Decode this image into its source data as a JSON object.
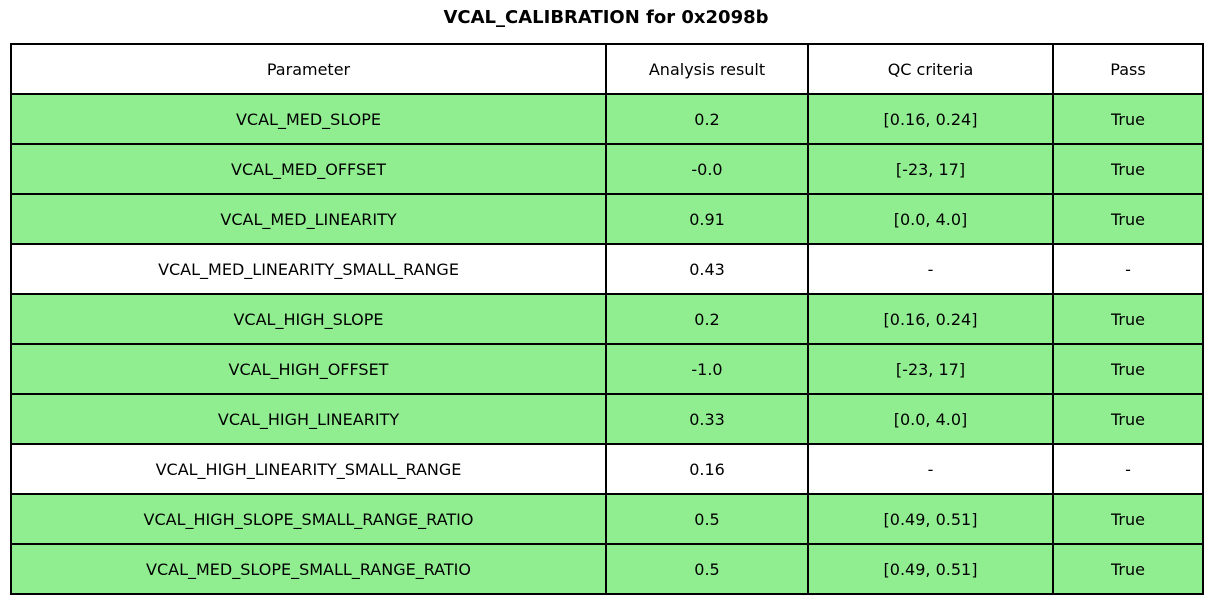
{
  "chart_data": {
    "type": "table",
    "title": "VCAL_CALIBRATION for 0x2098b",
    "columns": [
      "Parameter",
      "Analysis result",
      "QC criteria",
      "Pass"
    ],
    "rows": [
      [
        "VCAL_MED_SLOPE",
        "0.2",
        "[0.16, 0.24]",
        "True"
      ],
      [
        "VCAL_MED_OFFSET",
        "-0.0",
        "[-23, 17]",
        "True"
      ],
      [
        "VCAL_MED_LINEARITY",
        "0.91",
        "[0.0, 4.0]",
        "True"
      ],
      [
        "VCAL_MED_LINEARITY_SMALL_RANGE",
        "0.43",
        "-",
        "-"
      ],
      [
        "VCAL_HIGH_SLOPE",
        "0.2",
        "[0.16, 0.24]",
        "True"
      ],
      [
        "VCAL_HIGH_OFFSET",
        "-1.0",
        "[-23, 17]",
        "True"
      ],
      [
        "VCAL_HIGH_LINEARITY",
        "0.33",
        "[0.0, 4.0]",
        "True"
      ],
      [
        "VCAL_HIGH_LINEARITY_SMALL_RANGE",
        "0.16",
        "-",
        "-"
      ],
      [
        "VCAL_HIGH_SLOPE_SMALL_RANGE_RATIO",
        "0.5",
        "[0.49, 0.51]",
        "True"
      ],
      [
        "VCAL_MED_SLOPE_SMALL_RANGE_RATIO",
        "0.5",
        "[0.49, 0.51]",
        "True"
      ]
    ],
    "highlighted_rows": [
      0,
      1,
      2,
      4,
      5,
      6,
      8,
      9
    ],
    "legend_position": "none",
    "grid": true
  },
  "colors": {
    "pass_green": "#90ee90",
    "border": "#000000",
    "background": "#ffffff",
    "text": "#000000"
  }
}
